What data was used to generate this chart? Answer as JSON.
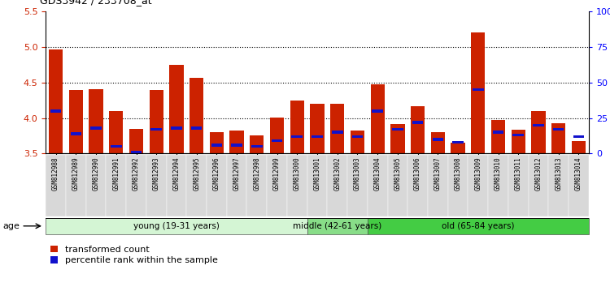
{
  "title": "GDS3942 / 233708_at",
  "samples": [
    "GSM812988",
    "GSM812989",
    "GSM812990",
    "GSM812991",
    "GSM812992",
    "GSM812993",
    "GSM812994",
    "GSM812995",
    "GSM812996",
    "GSM812997",
    "GSM812998",
    "GSM812999",
    "GSM813000",
    "GSM813001",
    "GSM813002",
    "GSM813003",
    "GSM813004",
    "GSM813005",
    "GSM813006",
    "GSM813007",
    "GSM813008",
    "GSM813009",
    "GSM813010",
    "GSM813011",
    "GSM813012",
    "GSM813013",
    "GSM813014"
  ],
  "transformed_count": [
    4.97,
    4.4,
    4.41,
    4.1,
    3.85,
    4.4,
    4.75,
    4.57,
    3.8,
    3.82,
    3.75,
    4.01,
    4.25,
    4.2,
    4.2,
    3.82,
    4.48,
    3.92,
    4.17,
    3.8,
    3.65,
    5.2,
    3.97,
    3.83,
    4.1,
    3.93,
    3.68
  ],
  "percentile_rank": [
    30,
    14,
    18,
    5,
    1,
    17,
    18,
    18,
    6,
    6,
    5,
    9,
    12,
    12,
    15,
    12,
    30,
    17,
    22,
    10,
    8,
    45,
    15,
    13,
    20,
    17,
    12
  ],
  "ylim_left": [
    3.5,
    5.5
  ],
  "ylim_right": [
    0,
    100
  ],
  "y_ticks_left": [
    3.5,
    4.0,
    4.5,
    5.0,
    5.5
  ],
  "y_ticks_right": [
    0,
    25,
    50,
    75,
    100
  ],
  "right_tick_labels": [
    "0",
    "25",
    "50",
    "75",
    "100%"
  ],
  "bar_color_red": "#cc2200",
  "bar_color_blue": "#1111cc",
  "bar_width": 0.7,
  "blue_bar_width": 0.55,
  "blue_bar_height": 0.04,
  "groups": [
    {
      "label": "young (19-31 years)",
      "start": 0,
      "end": 13,
      "color": "#d4f5d4"
    },
    {
      "label": "middle (42-61 years)",
      "start": 13,
      "end": 16,
      "color": "#88dd88"
    },
    {
      "label": "old (65-84 years)",
      "start": 16,
      "end": 27,
      "color": "#44cc44"
    }
  ],
  "age_label": "age",
  "legend_red": "transformed count",
  "legend_blue": "percentile rank within the sample",
  "base_value": 3.5,
  "dotted_lines": [
    4.0,
    4.5,
    5.0
  ],
  "xtick_bg": "#d8d8d8"
}
